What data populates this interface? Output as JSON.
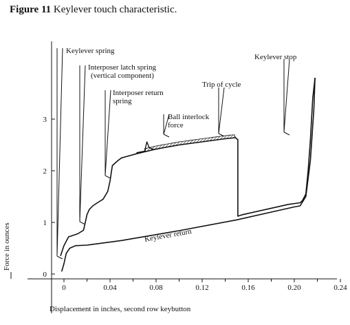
{
  "figure": {
    "number": "Figure 11",
    "caption": "Keylever touch characteristic."
  },
  "chart_data": {
    "type": "line",
    "xlabel": "Displacement in inches, second row keybutton",
    "ylabel": "Force in ounces",
    "xlim": [
      -0.02,
      0.26
    ],
    "ylim": [
      -0.1,
      3.8
    ],
    "xticks": [
      0,
      0.04,
      0.08,
      0.12,
      0.16,
      0.2,
      0.24
    ],
    "xtick_labels": [
      "0",
      "0.04",
      "0.08",
      "0.12",
      "0.16",
      "0.20",
      "0.24"
    ],
    "yticks": [
      0,
      1,
      2,
      3
    ],
    "ytick_labels": [
      "0",
      "1",
      "2",
      "3"
    ],
    "grid": false,
    "series": [
      {
        "role": "depress",
        "x": [
          -0.003,
          0.0,
          0.004,
          0.012,
          0.017,
          0.02,
          0.022,
          0.025,
          0.029,
          0.034,
          0.038,
          0.04,
          0.042,
          0.047,
          0.05,
          0.055,
          0.063,
          0.08,
          0.1,
          0.12,
          0.14,
          0.149,
          0.151,
          0.151,
          0.155,
          0.175,
          0.195,
          0.205,
          0.207,
          0.21,
          0.212,
          0.214,
          0.216,
          0.218
        ],
        "y": [
          0.35,
          0.55,
          0.72,
          0.78,
          0.85,
          1.15,
          1.25,
          1.32,
          1.38,
          1.45,
          1.6,
          1.8,
          2.1,
          2.2,
          2.25,
          2.28,
          2.33,
          2.42,
          2.5,
          2.56,
          2.62,
          2.64,
          2.6,
          1.12,
          1.15,
          1.25,
          1.35,
          1.38,
          1.42,
          1.55,
          2.0,
          2.6,
          3.4,
          3.8
        ]
      },
      {
        "role": "return",
        "x": [
          0.218,
          0.217,
          0.214,
          0.21,
          0.205,
          0.2,
          0.15,
          0.1,
          0.05,
          0.02,
          0.01,
          0.005,
          0.002,
          0.0,
          -0.002
        ],
        "y": [
          3.8,
          3.2,
          2.2,
          1.5,
          1.32,
          1.3,
          1.05,
          0.84,
          0.65,
          0.56,
          0.55,
          0.5,
          0.4,
          0.2,
          0.05
        ]
      },
      {
        "role": "ball-interlock-hump",
        "x": [
          0.063,
          0.07,
          0.072,
          0.074,
          0.078,
          0.085
        ],
        "y": [
          2.35,
          2.38,
          2.56,
          2.45,
          2.41,
          2.44
        ]
      }
    ],
    "hatched_region": {
      "label": "Ball interlock force",
      "x_from": 0.07,
      "x_to": 0.149
    },
    "annotations": [
      {
        "text": "Keylever spring",
        "x": 0.002,
        "y": 0.3
      },
      {
        "text": "Interposer latch spring",
        "text2": "(vertical component)",
        "x": 0.018,
        "y": 0.95
      },
      {
        "text": "Interposer return",
        "text2": "spring",
        "x": 0.043,
        "y": 1.85
      },
      {
        "text": "Ball interlock",
        "text2": "force",
        "x": 0.09,
        "y": 2.45
      },
      {
        "text": "Trip of cycle",
        "x": 0.15,
        "y": 2.65
      },
      {
        "text": "Keylever stop",
        "x": 0.212,
        "y": 2.7
      },
      {
        "text": "Keylever return",
        "x": 0.17,
        "y": 0.9
      }
    ]
  }
}
